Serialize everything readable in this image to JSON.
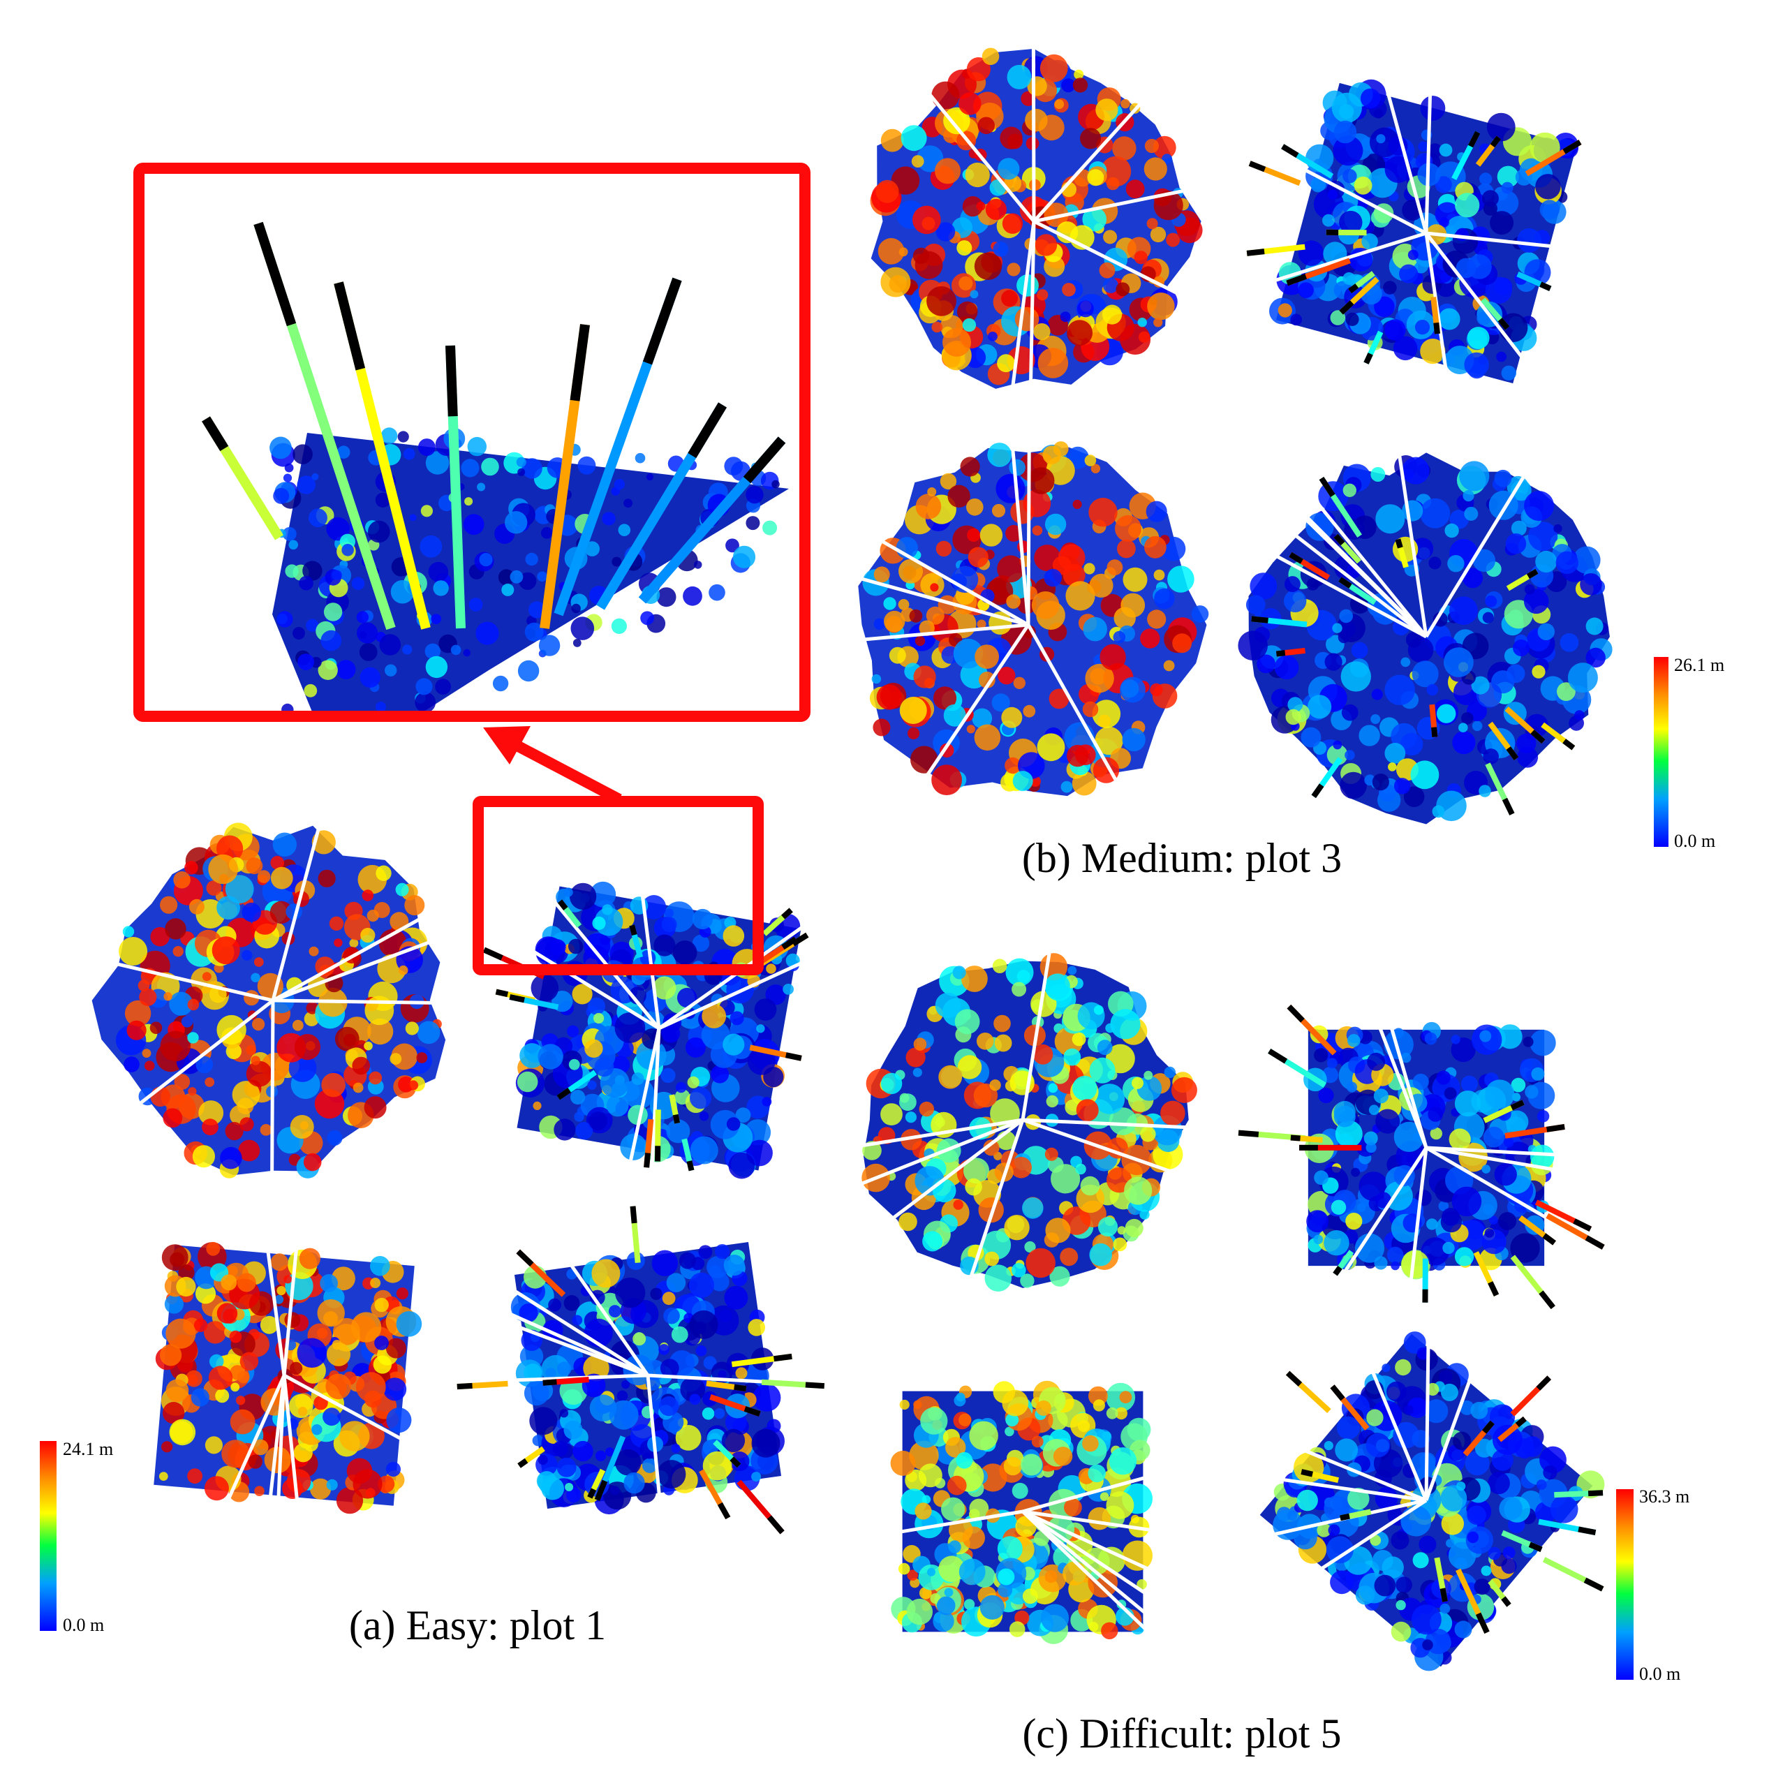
{
  "captions": {
    "a": "(a) Easy:  plot 1",
    "b": "(b) Medium:  plot 3",
    "c": "(c) Difficult:  plot 5"
  },
  "colorbars": [
    {
      "max": "24.1 m",
      "min": "0.0 m"
    },
    {
      "max": "26.1 m",
      "min": "0.0 m"
    },
    {
      "max": "36.3 m",
      "min": "0.0 m"
    }
  ]
}
